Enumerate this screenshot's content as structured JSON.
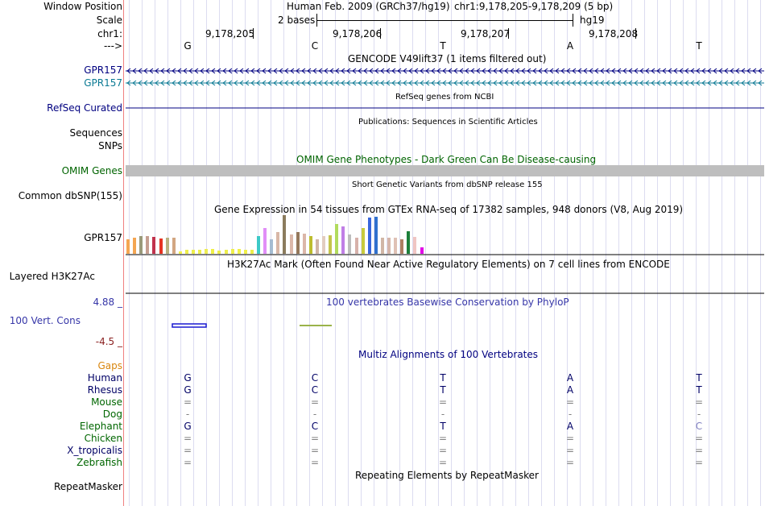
{
  "browser": {
    "side_labels": {
      "window_position": "Window Position",
      "scale": "Scale",
      "chrom": "chr1:",
      "strand": "--->",
      "gencode_track": "GPR157",
      "gencode_track2": "GPR157",
      "refseq": "RefSeq Curated",
      "sequences": "Sequences",
      "snps": "SNPs",
      "omim": "OMIM Genes",
      "dbsnp": "Common dbSNP(155)",
      "gtex": "GPR157",
      "h3k27ac": "Layered H3K27Ac",
      "cons_max": "4.88 _",
      "cons": "100 Vert. Cons",
      "cons_min": "-4.5 _",
      "gaps": "Gaps",
      "repeatmasker": "RepeatMasker"
    },
    "header": {
      "assembly": "Human Feb. 2009 (GRCh37/hg19)",
      "position": "chr1:9,178,205-9,178,209 (5 bp)",
      "scale_text": "2 bases",
      "db": "hg19"
    },
    "coordinates": [
      "9,178,205",
      "9,178,206",
      "9,178,207",
      "9,178,208"
    ],
    "bases": [
      "G",
      "C",
      "T",
      "A",
      "T"
    ],
    "track_titles": {
      "gencode": "GENCODE V49lift37 (1 items filtered out)",
      "refseq": "RefSeq genes from NCBI",
      "publications": "Publications: Sequences in Scientific Articles",
      "omim": "OMIM Gene Phenotypes - Dark Green Can Be Disease-causing",
      "dbsnp": "Short Genetic Variants from dbSNP release 155",
      "gtex": "Gene Expression in 54 tissues from GTEx RNA-seq of 17382 samples, 948 donors (V8, Aug 2019)",
      "h3k27ac": "H3K27Ac Mark (Often Found Near Active Regulatory Elements) on 7 cell lines from ENCODE",
      "phylop": "100 vertebrates Basewise Conservation by PhyloP",
      "multiz": "Multiz Alignments of 100 Vertebrates",
      "repeatmasker": "Repeating Elements by RepeatMasker"
    },
    "alignment": [
      {
        "species": "Human",
        "color": "#000066",
        "bases": [
          "G",
          "C",
          "T",
          "A",
          "T"
        ]
      },
      {
        "species": "Rhesus",
        "color": "#000066",
        "bases": [
          "G",
          "C",
          "T",
          "A",
          "T"
        ]
      },
      {
        "species": "Mouse",
        "color": "#006600",
        "bases": [
          "=",
          "=",
          "=",
          "=",
          "="
        ]
      },
      {
        "species": "Dog",
        "color": "#006600",
        "bases": [
          "-",
          "-",
          "-",
          "-",
          "-"
        ]
      },
      {
        "species": "Elephant",
        "color": "#006600",
        "bases": [
          "G",
          "C",
          "T",
          "A",
          "C"
        ]
      },
      {
        "species": "Chicken",
        "color": "#006600",
        "bases": [
          "=",
          "=",
          "=",
          "=",
          "="
        ]
      },
      {
        "species": "X_tropicalis",
        "color": "#000066",
        "bases": [
          "=",
          "=",
          "=",
          "=",
          "="
        ]
      },
      {
        "species": "Zebrafish",
        "color": "#006600",
        "bases": [
          "=",
          "=",
          "=",
          "=",
          "="
        ]
      }
    ],
    "gtex_tissue_colors": [
      "#f5a652",
      "#f4a652",
      "#9a9a7a",
      "#c59e91",
      "#c1324d",
      "#e63323",
      "#b9b080",
      "#d2a681",
      "#f2f24a",
      "#eeee4a",
      "#edee4a",
      "#edee4a",
      "#eeee52",
      "#f0f046",
      "#ecec4a",
      "#edee4a",
      "#efef4a",
      "#f0f048",
      "#f0f048",
      "#eded4a",
      "#3cc9c7",
      "#e18ef7",
      "#a5bcd2",
      "#d8b7a7",
      "#8b7b5d",
      "#dcb8aa",
      "#95785c",
      "#dbb6a8",
      "#bdbd2e",
      "#d0b5a5",
      "#e2cdc0",
      "#c4c44c",
      "#b1db5d",
      "#c07fe6",
      "#bdbdbd",
      "#d7b1aa",
      "#c8ca3b",
      "#3866dd",
      "#3171ce",
      "#d1b6a6",
      "#d6b6aa",
      "#dfc1b5",
      "#ad7f62",
      "#1c7f3a",
      "#f0c5c3",
      "#e100e6"
    ],
    "gtex_tissue_values": [
      0.38,
      0.42,
      0.46,
      0.46,
      0.44,
      0.4,
      0.42,
      0.42,
      0.06,
      0.1,
      0.1,
      0.1,
      0.12,
      0.12,
      0.08,
      0.1,
      0.12,
      0.12,
      0.1,
      0.1,
      0.46,
      0.66,
      0.38,
      0.56,
      1.0,
      0.5,
      0.56,
      0.52,
      0.46,
      0.38,
      0.46,
      0.48,
      0.78,
      0.7,
      0.5,
      0.42,
      0.66,
      0.94,
      0.96,
      0.42,
      0.42,
      0.42,
      0.38,
      0.58,
      0.44,
      0.16
    ],
    "colors": {
      "label_blue": "#000080",
      "gencode_teal": "#0c7a94",
      "omim_green": "#006400",
      "cons_blue": "#3636a8",
      "min_red": "#8b2222",
      "gaps_orange": "#d9860e"
    },
    "icons": {
      "strand_arrow": "chevron-left-icon"
    }
  }
}
